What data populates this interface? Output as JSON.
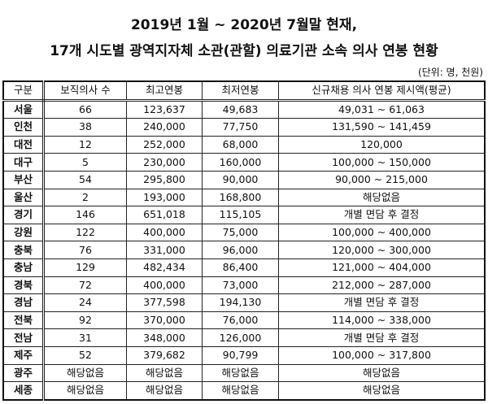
{
  "title_line1": "2019년 1월 ~ 2020년 7월말 현재,",
  "title_line2": "17개 시도별 광역지자체 소관(관할) 의료기관 소속 의사 연봉 현황",
  "unit": "(단위: 명, 천원)",
  "table": {
    "headers": [
      "구분",
      "보직의사 수",
      "최고연봉",
      "최저연봉",
      "신규채용 의사 연봉 제시액(평균)"
    ],
    "rows": [
      [
        "서울",
        "66",
        "123,637",
        "49,683",
        "49,031 ~ 61,063"
      ],
      [
        "인천",
        "38",
        "240,000",
        "77,750",
        "131,590 ~ 141,459"
      ],
      [
        "대전",
        "12",
        "252,000",
        "68,000",
        "120,000"
      ],
      [
        "대구",
        "5",
        "230,000",
        "160,000",
        "100,000 ~ 150,000"
      ],
      [
        "부산",
        "54",
        "295,800",
        "90,000",
        "90,000 ~ 215,000"
      ],
      [
        "울산",
        "2",
        "193,000",
        "168,800",
        "해당없음"
      ],
      [
        "경기",
        "146",
        "651,018",
        "115,105",
        "개별 면담 후 결정"
      ],
      [
        "강원",
        "122",
        "400,000",
        "75,000",
        "100,000 ~ 400,000"
      ],
      [
        "충북",
        "76",
        "331,000",
        "96,000",
        "120,000 ~ 300,000"
      ],
      [
        "충남",
        "129",
        "482,434",
        "86,400",
        "121,000 ~ 404,000"
      ],
      [
        "경북",
        "72",
        "400,000",
        "73,000",
        "212,000 ~ 287,000"
      ],
      [
        "경남",
        "24",
        "377,598",
        "194,130",
        "개별 면담 후 결정"
      ],
      [
        "전북",
        "92",
        "370,000",
        "76,000",
        "114,000 ~ 338,000"
      ],
      [
        "전남",
        "31",
        "348,000",
        "126,000",
        "개별 면담 후 결정"
      ],
      [
        "제주",
        "52",
        "379,682",
        "90,799",
        "100,000 ~ 317,800"
      ],
      [
        "광주",
        "해당없음",
        "해당없음",
        "해당없음",
        "해당없음"
      ],
      [
        "세종",
        "해당없음",
        "해당없음",
        "해당없음",
        "해당없음"
      ]
    ]
  }
}
